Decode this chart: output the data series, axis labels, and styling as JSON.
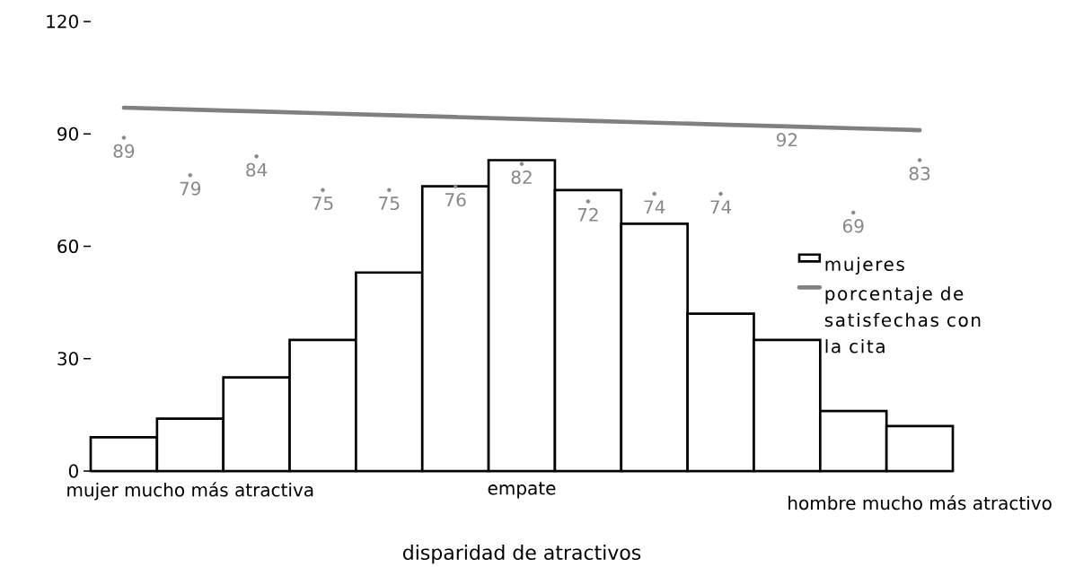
{
  "chart_data": {
    "type": "bar",
    "xlabel": "disparidad de atractivos",
    "categories": [
      null,
      "mujer mucho más atractiva",
      null,
      null,
      null,
      null,
      "empate",
      null,
      null,
      null,
      null,
      null,
      "hombre mucho más atractivo"
    ],
    "series": [
      {
        "name": "mujeres",
        "color": "#000000",
        "values": [
          9,
          14,
          25,
          35,
          53,
          76,
          83,
          75,
          66,
          42,
          35,
          16,
          12
        ]
      },
      {
        "name": "porcentaje de satisfechas con la cita",
        "type": "line",
        "color": "#808080",
        "values": [
          97,
          96.5,
          96,
          95.5,
          95,
          94.5,
          94,
          93.5,
          93,
          92.5,
          92,
          91.5,
          91
        ]
      },
      {
        "type": "scatter",
        "color": "#888888",
        "marker": "circle",
        "values": [
          89,
          79,
          84,
          75,
          75,
          76,
          82,
          72,
          74,
          74,
          92,
          69,
          83
        ],
        "value_labels": [
          "89",
          "79",
          "84",
          "75",
          "75",
          "76",
          "82",
          "72",
          "74",
          "74",
          "92",
          "69",
          "83"
        ]
      }
    ],
    "ylim": [
      0,
      120
    ],
    "yticks": [
      0,
      30,
      60,
      90,
      120
    ],
    "legend": "right",
    "grid": false
  }
}
